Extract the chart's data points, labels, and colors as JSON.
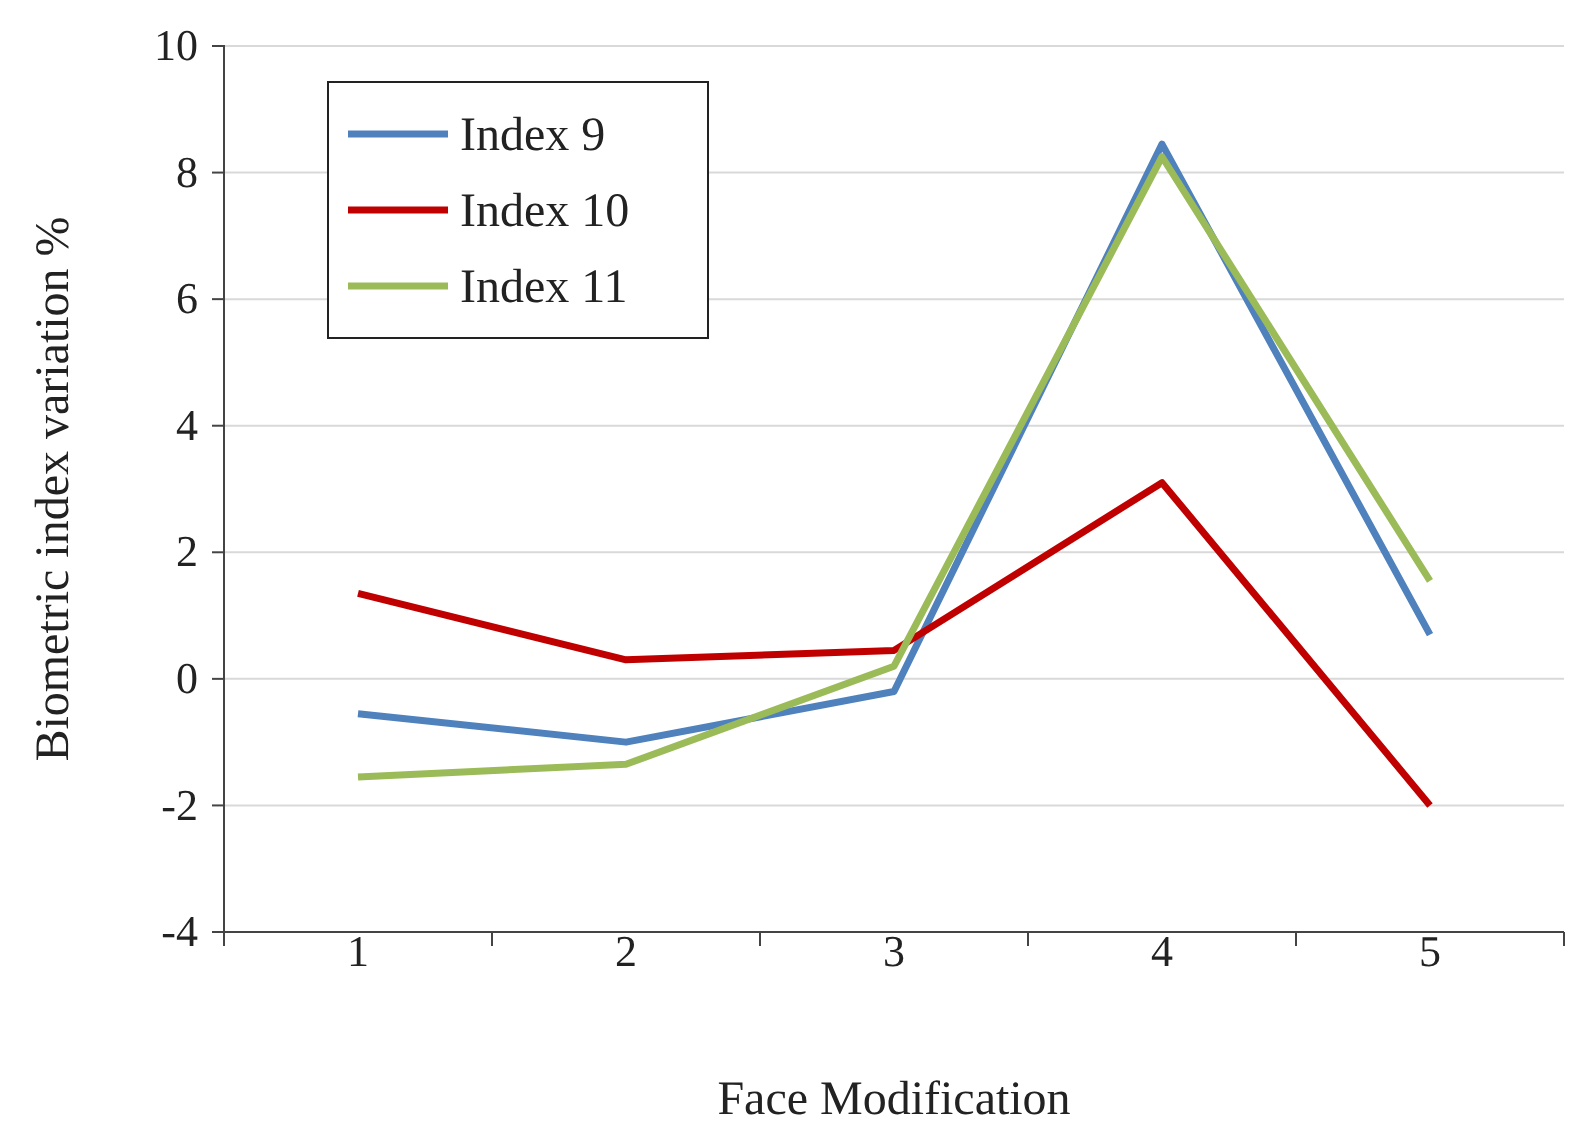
{
  "chart_data": {
    "type": "line",
    "xlabel": "Face Modification",
    "ylabel": "Biometric index  variation %",
    "categories": [
      "1",
      "2",
      "3",
      "4",
      "5"
    ],
    "ylim": [
      -4,
      10
    ],
    "yticks": [
      -4,
      -2,
      0,
      2,
      4,
      6,
      8,
      10
    ],
    "grid": "y",
    "legend": "top left",
    "marker": "none",
    "line_style": "solid",
    "series": [
      {
        "name": "Index 9",
        "color": "#4f81bd",
        "values": [
          -0.55,
          -1.0,
          -0.2,
          8.45,
          0.7
        ]
      },
      {
        "name": "Index 10",
        "color": "#c00000",
        "values": [
          1.35,
          0.3,
          0.45,
          3.1,
          -2.0
        ]
      },
      {
        "name": "Index 11",
        "color": "#9bbb59",
        "values": [
          -1.55,
          -1.35,
          0.2,
          8.25,
          1.55
        ]
      }
    ]
  }
}
